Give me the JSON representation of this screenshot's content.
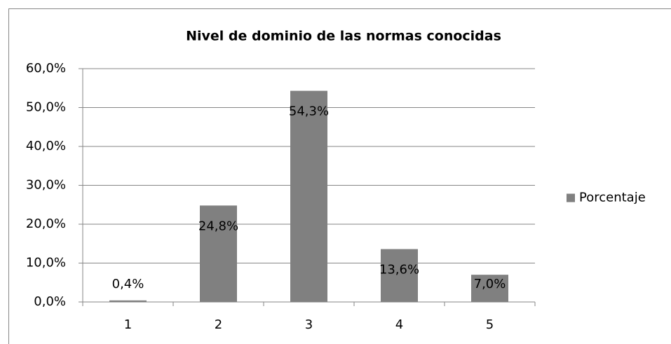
{
  "chart_data": {
    "type": "bar",
    "title": "Nivel de dominio de las normas conocidas",
    "categories": [
      "1",
      "2",
      "3",
      "4",
      "5"
    ],
    "series": [
      {
        "name": "Porcentaje",
        "color": "#808080",
        "values": [
          0.4,
          24.8,
          54.3,
          13.6,
          7.0
        ],
        "value_labels": [
          "0,4%",
          "24,8%",
          "54,3%",
          "13,6%",
          "7,0%"
        ]
      }
    ],
    "ylim": [
      0,
      60
    ],
    "yticks": [
      {
        "value": 0,
        "label": "0,0%"
      },
      {
        "value": 10,
        "label": "10,0%"
      },
      {
        "value": 20,
        "label": "20,0%"
      },
      {
        "value": 30,
        "label": "30,0%"
      },
      {
        "value": 40,
        "label": "40,0%"
      },
      {
        "value": 50,
        "label": "50,0%"
      },
      {
        "value": 60,
        "label": "60,0%"
      }
    ],
    "grid": true,
    "legend": "right"
  }
}
